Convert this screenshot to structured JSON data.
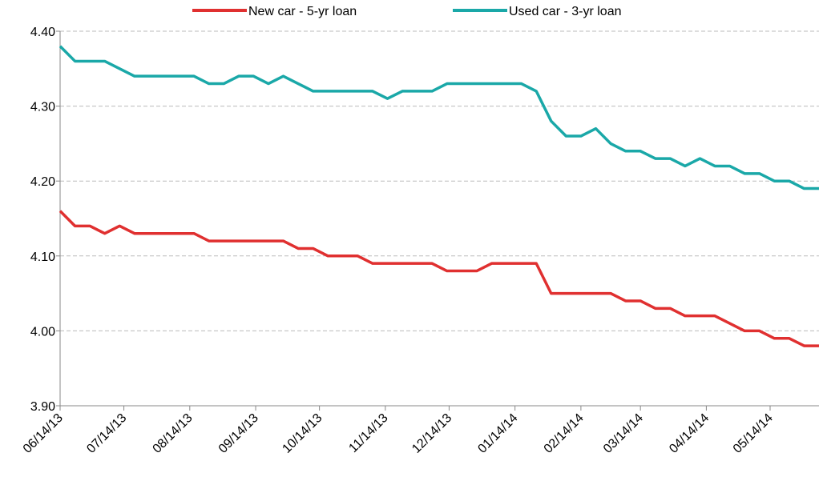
{
  "chart_data": {
    "type": "line",
    "x": [
      "06/14/13",
      "06/21/13",
      "06/28/13",
      "07/05/13",
      "07/12/13",
      "07/19/13",
      "07/26/13",
      "08/02/13",
      "08/09/13",
      "08/16/13",
      "08/23/13",
      "08/30/13",
      "09/06/13",
      "09/13/13",
      "09/20/13",
      "09/27/13",
      "10/04/13",
      "10/11/13",
      "10/18/13",
      "10/25/13",
      "11/01/13",
      "11/08/13",
      "11/15/13",
      "11/22/13",
      "11/29/13",
      "12/06/13",
      "12/13/13",
      "12/20/13",
      "12/27/13",
      "01/03/14",
      "01/10/14",
      "01/17/14",
      "01/24/14",
      "01/31/14",
      "02/07/14",
      "02/14/14",
      "02/21/14",
      "02/28/14",
      "03/07/14",
      "03/14/14",
      "03/21/14",
      "03/28/14",
      "04/04/14",
      "04/11/14",
      "04/18/14",
      "04/25/14",
      "05/02/14",
      "05/09/14",
      "05/16/14",
      "05/23/14",
      "05/30/14",
      "06/06/14"
    ],
    "series": [
      {
        "name": "New car - 5-yr loan",
        "color": "#e03030",
        "values": [
          4.16,
          4.14,
          4.14,
          4.13,
          4.14,
          4.13,
          4.13,
          4.13,
          4.13,
          4.13,
          4.12,
          4.12,
          4.12,
          4.12,
          4.12,
          4.12,
          4.11,
          4.11,
          4.1,
          4.1,
          4.1,
          4.09,
          4.09,
          4.09,
          4.09,
          4.09,
          4.08,
          4.08,
          4.08,
          4.09,
          4.09,
          4.09,
          4.09,
          4.05,
          4.05,
          4.05,
          4.05,
          4.05,
          4.04,
          4.04,
          4.03,
          4.03,
          4.02,
          4.02,
          4.02,
          4.01,
          4.0,
          4.0,
          3.99,
          3.99,
          3.98,
          3.98
        ]
      },
      {
        "name": "Used car - 3-yr loan",
        "color": "#1aa8a8",
        "values": [
          4.38,
          4.36,
          4.36,
          4.36,
          4.35,
          4.34,
          4.34,
          4.34,
          4.34,
          4.34,
          4.33,
          4.33,
          4.34,
          4.34,
          4.33,
          4.34,
          4.33,
          4.32,
          4.32,
          4.32,
          4.32,
          4.32,
          4.31,
          4.32,
          4.32,
          4.32,
          4.33,
          4.33,
          4.33,
          4.33,
          4.33,
          4.33,
          4.32,
          4.28,
          4.26,
          4.26,
          4.27,
          4.25,
          4.24,
          4.24,
          4.23,
          4.23,
          4.22,
          4.23,
          4.22,
          4.22,
          4.21,
          4.21,
          4.2,
          4.2,
          4.19,
          4.19
        ]
      }
    ],
    "xlim": [
      "06/14/13",
      "06/06/14"
    ],
    "xticks": [
      "06/14/13",
      "07/14/13",
      "08/14/13",
      "09/14/13",
      "10/14/13",
      "11/14/13",
      "12/14/13",
      "01/14/14",
      "02/14/14",
      "03/14/14",
      "04/14/14",
      "05/14/14"
    ],
    "ylim": [
      3.9,
      4.4
    ],
    "yticks": [
      {
        "value": 3.9,
        "label": "3.90"
      },
      {
        "value": 4.0,
        "label": "4.00"
      },
      {
        "value": 4.1,
        "label": "4.10"
      },
      {
        "value": 4.2,
        "label": "4.20"
      },
      {
        "value": 4.3,
        "label": "4.30"
      },
      {
        "value": 4.4,
        "label": "4.40"
      }
    ],
    "grid": true,
    "legend": "top"
  }
}
